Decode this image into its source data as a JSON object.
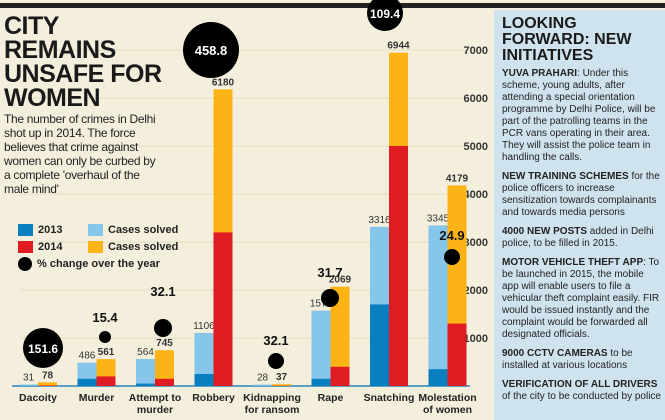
{
  "title": "CITY REMAINS UNSAFE FOR WOMEN",
  "intro": "The number of crimes in Delhi shot up in 2014. The force believes that crime against women can only be curbed by a complete 'overhaul of the male mind'",
  "legend": {
    "y2013": "2013",
    "y2014": "2014",
    "solved1": "Cases solved",
    "solved2": "Cases solved",
    "change": "% change over the year"
  },
  "colors": {
    "c2013": "#0a7fc0",
    "solved2013": "#86c6ea",
    "c2014": "#e11b22",
    "solved2014": "#fbb315"
  },
  "sidebar": {
    "title": "LOOKING FORWARD: NEW INITIATIVES",
    "items": [
      {
        "head": "YUVA PRAHARI",
        "body": ": Under this scheme, young adults, after attending a special orientation programme by Delhi Police, will be part of the patrolling teams in the PCR vans operating in their area. They will assist the police team in handling the calls."
      },
      {
        "head": "NEW TRAINING SCHEMES",
        "body": " for the police officers to increase sensitization towards complainants and towards media persons"
      },
      {
        "head": "4000 NEW POSTS",
        "body": " added in Delhi police, to be filled in 2015."
      },
      {
        "head": "MOTOR VEHICLE THEFT APP",
        "body": ": To be launched in 2015, the mobile app will enable users to file a vehicular theft complaint easily. FIR would be issued instantly and the complaint would be forwarded all designated officials."
      },
      {
        "head": "9000 CCTV CAMERAS",
        "body": " to be installed at various locations"
      },
      {
        "head": "VERIFICATION OF ALL DRIVERS",
        "body": " of the city to be conducted by police"
      }
    ]
  },
  "chart_data": {
    "type": "bar",
    "ylim": [
      0,
      7000
    ],
    "yticks": [
      1000,
      2000,
      3000,
      4000,
      5000,
      6000,
      7000
    ],
    "categories": [
      "Dacoity",
      "Murder",
      "Attempt to murder",
      "Robbery",
      "Kidnapping for ransom",
      "Rape",
      "Snatching",
      "Molestation of women"
    ],
    "series": [
      {
        "name": "2013",
        "values": [
          31,
          486,
          564,
          1106,
          28,
          1571,
          3316,
          3345
        ],
        "inner": [
          5,
          150,
          50,
          250,
          3,
          150,
          1700,
          350
        ],
        "labels": [
          "31",
          "486",
          "564",
          "1106",
          "28",
          "1571",
          "3316",
          "3345"
        ]
      },
      {
        "name": "2014",
        "values": [
          78,
          561,
          745,
          6180,
          37,
          2069,
          6944,
          4179
        ],
        "inner": [
          10,
          200,
          150,
          3200,
          5,
          400,
          5000,
          1300
        ],
        "labels": [
          "78",
          "561",
          "745",
          "6180",
          "37",
          "2069",
          "6944",
          "4179"
        ]
      }
    ],
    "pct_change": [
      "151.6",
      "15.4",
      "32.1",
      "458.8",
      "32.1",
      "31.7",
      "109.4",
      "24.9"
    ]
  }
}
